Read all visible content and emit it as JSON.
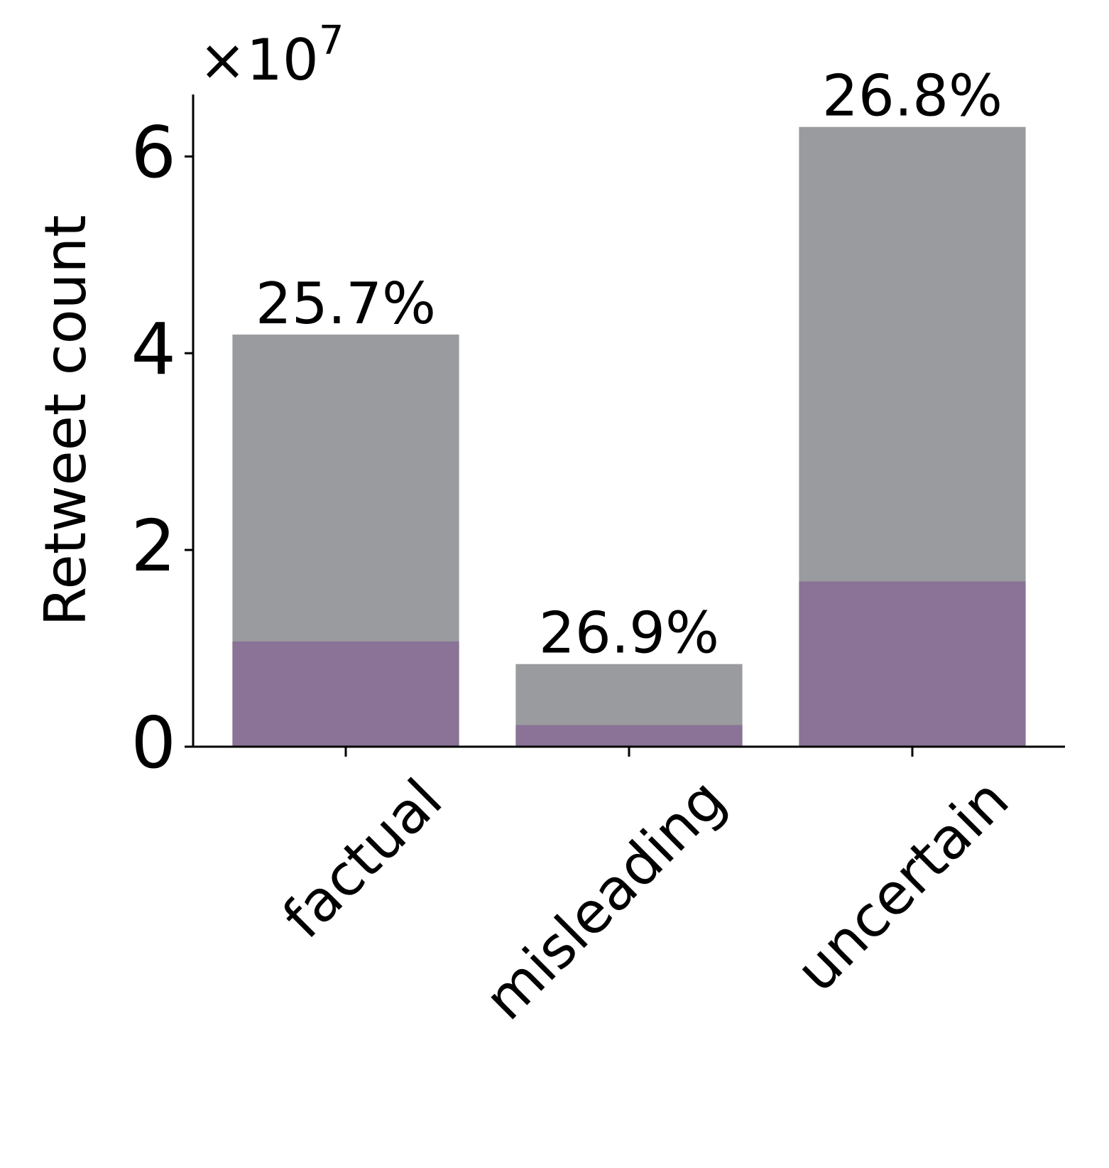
{
  "chart_data": {
    "type": "bar",
    "overlay": true,
    "ylabel": "Retweet count",
    "offset_label": "×10",
    "offset_exponent": "7",
    "categories": [
      "factual",
      "misleading",
      "uncertain"
    ],
    "series": [
      {
        "color": "#9a9b9e",
        "values": [
          4.19,
          0.84,
          6.3
        ]
      },
      {
        "color": "#8a7396",
        "values": [
          1.07,
          0.22,
          1.68
        ]
      }
    ],
    "annotations": [
      "25.7%",
      "26.9%",
      "26.8%"
    ],
    "ylim": [
      0,
      6.63
    ],
    "yticks": [
      0,
      2,
      4,
      6
    ],
    "grid": false
  }
}
